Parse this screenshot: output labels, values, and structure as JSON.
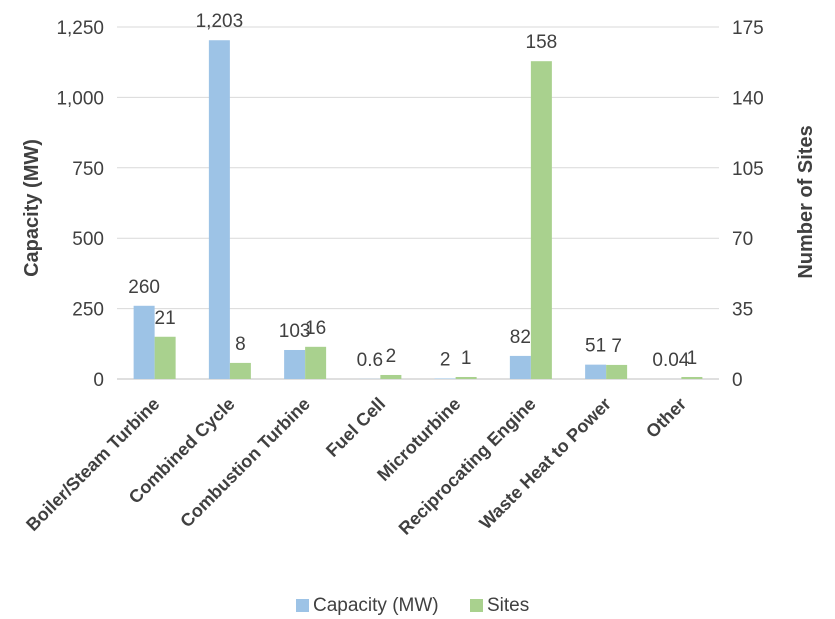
{
  "chart_data": {
    "type": "bar",
    "categories": [
      "Boiler/Steam Turbine",
      "Combined Cycle",
      "Combustion Turbine",
      "Fuel Cell",
      "Microturbine",
      "Reciprocating Engine",
      "Waste Heat to Power",
      "Other"
    ],
    "series": [
      {
        "name": "Capacity (MW)",
        "axis": "left",
        "color": "#9dc3e6",
        "values": [
          260,
          1203,
          103,
          0.6,
          2,
          82,
          51,
          0.04
        ],
        "labels": [
          "260",
          "1,203",
          "103",
          "0.6",
          "2",
          "82",
          "51",
          "0.04"
        ]
      },
      {
        "name": "Sites",
        "axis": "right",
        "color": "#a9d18e",
        "values": [
          21,
          8,
          16,
          2,
          1,
          158,
          7,
          1
        ],
        "labels": [
          "21",
          "8",
          "16",
          "2",
          "1",
          "158",
          "7",
          "1"
        ]
      }
    ],
    "ylabel": "Capacity (MW)",
    "y2label": "Number of Sites",
    "ylim": [
      0,
      1250
    ],
    "y2lim": [
      0,
      175
    ],
    "yticks": [
      "0",
      "250",
      "500",
      "750",
      "1,000",
      "1,250"
    ],
    "y2ticks": [
      "0",
      "35",
      "70",
      "105",
      "140",
      "175"
    ],
    "grid": true,
    "legend": "bottom"
  }
}
